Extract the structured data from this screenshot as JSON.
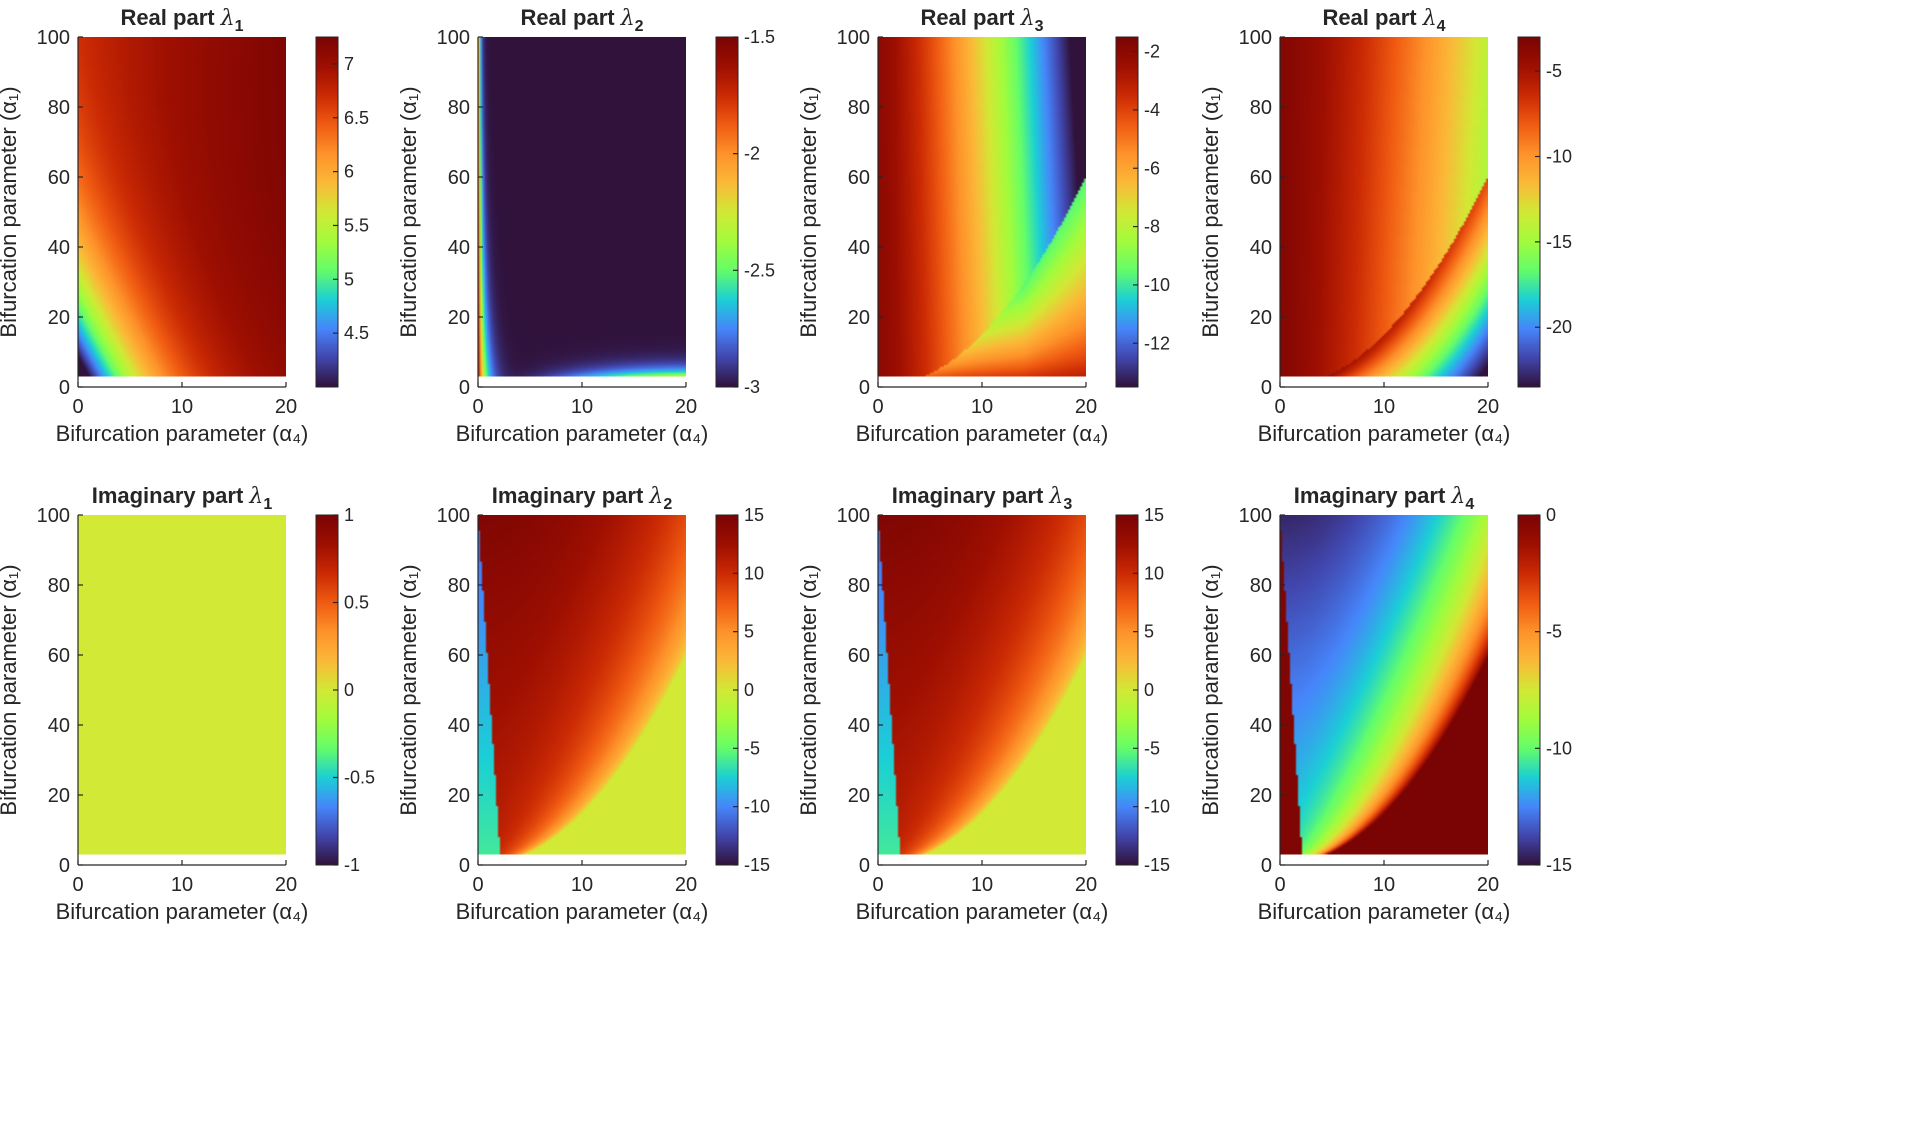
{
  "figure": {
    "layout": "2 rows x 4 columns"
  },
  "colormap": [
    "#30123b",
    "#4146ad",
    "#4686fb",
    "#1bd0d5",
    "#64fd6a",
    "#a2fc3c",
    "#d2e935",
    "#fbb938",
    "#fe922a",
    "#f05b12",
    "#cb2a04",
    "#9e0f01",
    "#7a0403"
  ],
  "chart_data": [
    {
      "type": "heatmap",
      "id": "re1",
      "title_prefix": "Real part ",
      "symbol": "λ",
      "subscript": "1",
      "xlabel": "Bifurcation parameter (α₄)",
      "ylabel": "Bifurcation parameter (α₁)",
      "xlim": [
        0,
        20
      ],
      "ylim": [
        0,
        100
      ],
      "xticks": [
        "0",
        "10",
        "20"
      ],
      "yticks": [
        "0",
        "20",
        "40",
        "60",
        "80",
        "100"
      ],
      "data_ylim": [
        3,
        100
      ],
      "clim": [
        4.0,
        7.25
      ],
      "cb_ticks": [
        4.5,
        5,
        5.5,
        6,
        6.5,
        7
      ],
      "cb_tick_labels": [
        "4.5",
        "5",
        "5.5",
        "6",
        "6.5",
        "7"
      ],
      "field": "re1"
    },
    {
      "type": "heatmap",
      "id": "re2",
      "title_prefix": "Real part ",
      "symbol": "λ",
      "subscript": "2",
      "xlabel": "Bifurcation parameter (α₄)",
      "ylabel": "Bifurcation parameter (α₁)",
      "xlim": [
        0,
        20
      ],
      "ylim": [
        0,
        100
      ],
      "xticks": [
        "0",
        "10",
        "20"
      ],
      "yticks": [
        "0",
        "20",
        "40",
        "60",
        "80",
        "100"
      ],
      "data_ylim": [
        3,
        100
      ],
      "clim": [
        -3,
        -1.5
      ],
      "cb_ticks": [
        -3,
        -2.5,
        -2,
        -1.5
      ],
      "cb_tick_labels": [
        "-3",
        "-2.5",
        "-2",
        "-1.5"
      ],
      "field": "re2"
    },
    {
      "type": "heatmap",
      "id": "re3",
      "title_prefix": "Real part ",
      "symbol": "λ",
      "subscript": "3",
      "xlabel": "Bifurcation parameter (α₄)",
      "ylabel": "Bifurcation parameter (α₁)",
      "xlim": [
        0,
        20
      ],
      "ylim": [
        0,
        100
      ],
      "xticks": [
        "0",
        "10",
        "20"
      ],
      "yticks": [
        "0",
        "20",
        "40",
        "60",
        "80",
        "100"
      ],
      "data_ylim": [
        3,
        100
      ],
      "clim": [
        -13.5,
        -1.5
      ],
      "cb_ticks": [
        -12,
        -10,
        -8,
        -6,
        -4,
        -2
      ],
      "cb_tick_labels": [
        "-12",
        "-10",
        "-8",
        "-6",
        "-4",
        "-2"
      ],
      "field": "re3"
    },
    {
      "type": "heatmap",
      "id": "re4",
      "title_prefix": "Real part ",
      "symbol": "λ",
      "subscript": "4",
      "xlabel": "Bifurcation parameter (α₄)",
      "ylabel": "Bifurcation parameter (α₁)",
      "xlim": [
        0,
        20
      ],
      "ylim": [
        0,
        100
      ],
      "xticks": [
        "0",
        "10",
        "20"
      ],
      "yticks": [
        "0",
        "20",
        "40",
        "60",
        "80",
        "100"
      ],
      "data_ylim": [
        3,
        100
      ],
      "clim": [
        -23.5,
        -3
      ],
      "cb_ticks": [
        -20,
        -15,
        -10,
        -5
      ],
      "cb_tick_labels": [
        "-20",
        "-15",
        "-10",
        "-5"
      ],
      "field": "re4"
    },
    {
      "type": "heatmap",
      "id": "im1",
      "title_prefix": "Imaginary part ",
      "symbol": "λ",
      "subscript": "1",
      "xlabel": "Bifurcation parameter (α₄)",
      "ylabel": "Bifurcation parameter (α₁)",
      "xlim": [
        0,
        20
      ],
      "ylim": [
        0,
        100
      ],
      "xticks": [
        "0",
        "10",
        "20"
      ],
      "yticks": [
        "0",
        "20",
        "40",
        "60",
        "80",
        "100"
      ],
      "data_ylim": [
        3,
        100
      ],
      "clim": [
        -1,
        1
      ],
      "cb_ticks": [
        -1,
        -0.5,
        0,
        0.5,
        1
      ],
      "cb_tick_labels": [
        "-1",
        "-0.5",
        "0",
        "0.5",
        "1"
      ],
      "field": "im1"
    },
    {
      "type": "heatmap",
      "id": "im2",
      "title_prefix": "Imaginary part ",
      "symbol": "λ",
      "subscript": "2",
      "xlabel": "Bifurcation parameter (α₄)",
      "ylabel": "Bifurcation parameter (α₁)",
      "xlim": [
        0,
        20
      ],
      "ylim": [
        0,
        100
      ],
      "xticks": [
        "0",
        "10",
        "20"
      ],
      "yticks": [
        "0",
        "20",
        "40",
        "60",
        "80",
        "100"
      ],
      "data_ylim": [
        3,
        100
      ],
      "clim": [
        -15,
        15
      ],
      "cb_ticks": [
        -15,
        -10,
        -5,
        0,
        5,
        10,
        15
      ],
      "cb_tick_labels": [
        "-15",
        "-10",
        "-5",
        "0",
        "5",
        "10",
        "15"
      ],
      "field": "im2"
    },
    {
      "type": "heatmap",
      "id": "im3",
      "title_prefix": "Imaginary part ",
      "symbol": "λ",
      "subscript": "3",
      "xlabel": "Bifurcation parameter (α₄)",
      "ylabel": "Bifurcation parameter (α₁)",
      "xlim": [
        0,
        20
      ],
      "ylim": [
        0,
        100
      ],
      "xticks": [
        "0",
        "10",
        "20"
      ],
      "yticks": [
        "0",
        "20",
        "40",
        "60",
        "80",
        "100"
      ],
      "data_ylim": [
        3,
        100
      ],
      "clim": [
        -15,
        15
      ],
      "cb_ticks": [
        -15,
        -10,
        -5,
        0,
        5,
        10,
        15
      ],
      "cb_tick_labels": [
        "-15",
        "-10",
        "-5",
        "0",
        "5",
        "10",
        "15"
      ],
      "field": "im2"
    },
    {
      "type": "heatmap",
      "id": "im4",
      "title_prefix": "Imaginary part ",
      "symbol": "λ",
      "subscript": "4",
      "xlabel": "Bifurcation parameter (α₄)",
      "ylabel": "Bifurcation parameter (α₁)",
      "xlim": [
        0,
        20
      ],
      "ylim": [
        0,
        100
      ],
      "xticks": [
        "0",
        "10",
        "20"
      ],
      "yticks": [
        "0",
        "20",
        "40",
        "60",
        "80",
        "100"
      ],
      "data_ylim": [
        3,
        100
      ],
      "clim": [
        -15,
        0
      ],
      "cb_ticks": [
        -15,
        -10,
        -5,
        0
      ],
      "cb_tick_labels": [
        "-15",
        "-10",
        "-5",
        "0"
      ],
      "field": "im4"
    }
  ]
}
